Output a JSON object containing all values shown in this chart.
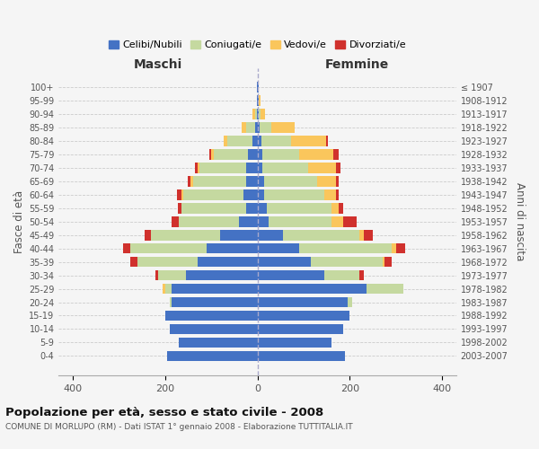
{
  "age_groups": [
    "0-4",
    "5-9",
    "10-14",
    "15-19",
    "20-24",
    "25-29",
    "30-34",
    "35-39",
    "40-44",
    "45-49",
    "50-54",
    "55-59",
    "60-64",
    "65-69",
    "70-74",
    "75-79",
    "80-84",
    "85-89",
    "90-94",
    "95-99",
    "100+"
  ],
  "birth_years": [
    "2003-2007",
    "1998-2002",
    "1993-1997",
    "1988-1992",
    "1983-1987",
    "1978-1982",
    "1973-1977",
    "1968-1972",
    "1963-1967",
    "1958-1962",
    "1953-1957",
    "1948-1952",
    "1943-1947",
    "1938-1942",
    "1933-1937",
    "1928-1932",
    "1923-1927",
    "1918-1922",
    "1913-1917",
    "1908-1912",
    "≤ 1907"
  ],
  "males": {
    "celibi": [
      195,
      170,
      190,
      200,
      185,
      185,
      155,
      130,
      110,
      80,
      40,
      25,
      30,
      25,
      25,
      20,
      10,
      5,
      2,
      2,
      2
    ],
    "coniugati": [
      0,
      0,
      0,
      0,
      5,
      15,
      60,
      130,
      165,
      150,
      130,
      140,
      130,
      115,
      100,
      75,
      55,
      20,
      3,
      0,
      0
    ],
    "vedovi": [
      0,
      0,
      0,
      0,
      0,
      5,
      0,
      0,
      0,
      0,
      0,
      0,
      5,
      5,
      5,
      5,
      8,
      10,
      5,
      0,
      0
    ],
    "divorziati": [
      0,
      0,
      0,
      0,
      0,
      0,
      5,
      15,
      15,
      15,
      15,
      8,
      10,
      5,
      5,
      5,
      0,
      0,
      0,
      0,
      0
    ]
  },
  "females": {
    "nubili": [
      190,
      160,
      185,
      200,
      195,
      235,
      145,
      115,
      90,
      55,
      25,
      20,
      15,
      15,
      10,
      10,
      8,
      5,
      2,
      2,
      2
    ],
    "coniugate": [
      0,
      0,
      0,
      0,
      10,
      80,
      75,
      155,
      200,
      165,
      135,
      140,
      130,
      115,
      100,
      80,
      65,
      25,
      5,
      0,
      0
    ],
    "vedove": [
      0,
      0,
      0,
      0,
      0,
      0,
      0,
      5,
      10,
      10,
      25,
      15,
      25,
      40,
      60,
      75,
      75,
      50,
      10,
      5,
      0
    ],
    "divorziate": [
      0,
      0,
      0,
      0,
      0,
      0,
      10,
      15,
      20,
      20,
      30,
      10,
      5,
      5,
      10,
      10,
      5,
      0,
      0,
      0,
      0
    ]
  },
  "colors": {
    "celibi": "#4472c4",
    "coniugati": "#c5d9a0",
    "vedovi": "#fac65c",
    "divorziati": "#d0312d"
  },
  "xlim": 430,
  "title": "Popolazione per età, sesso e stato civile - 2008",
  "subtitle": "COMUNE DI MORLUPO (RM) - Dati ISTAT 1° gennaio 2008 - Elaborazione TUTTITALIA.IT",
  "ylabel": "Fasce di età",
  "ylabel_right": "Anni di nascita",
  "legend_labels": [
    "Celibi/Nubili",
    "Coniugati/e",
    "Vedovi/e",
    "Divorziati/e"
  ],
  "maschi_label": "Maschi",
  "femmine_label": "Femmine",
  "bg_color": "#f5f5f5",
  "plot_bg": "#f5f5f5"
}
